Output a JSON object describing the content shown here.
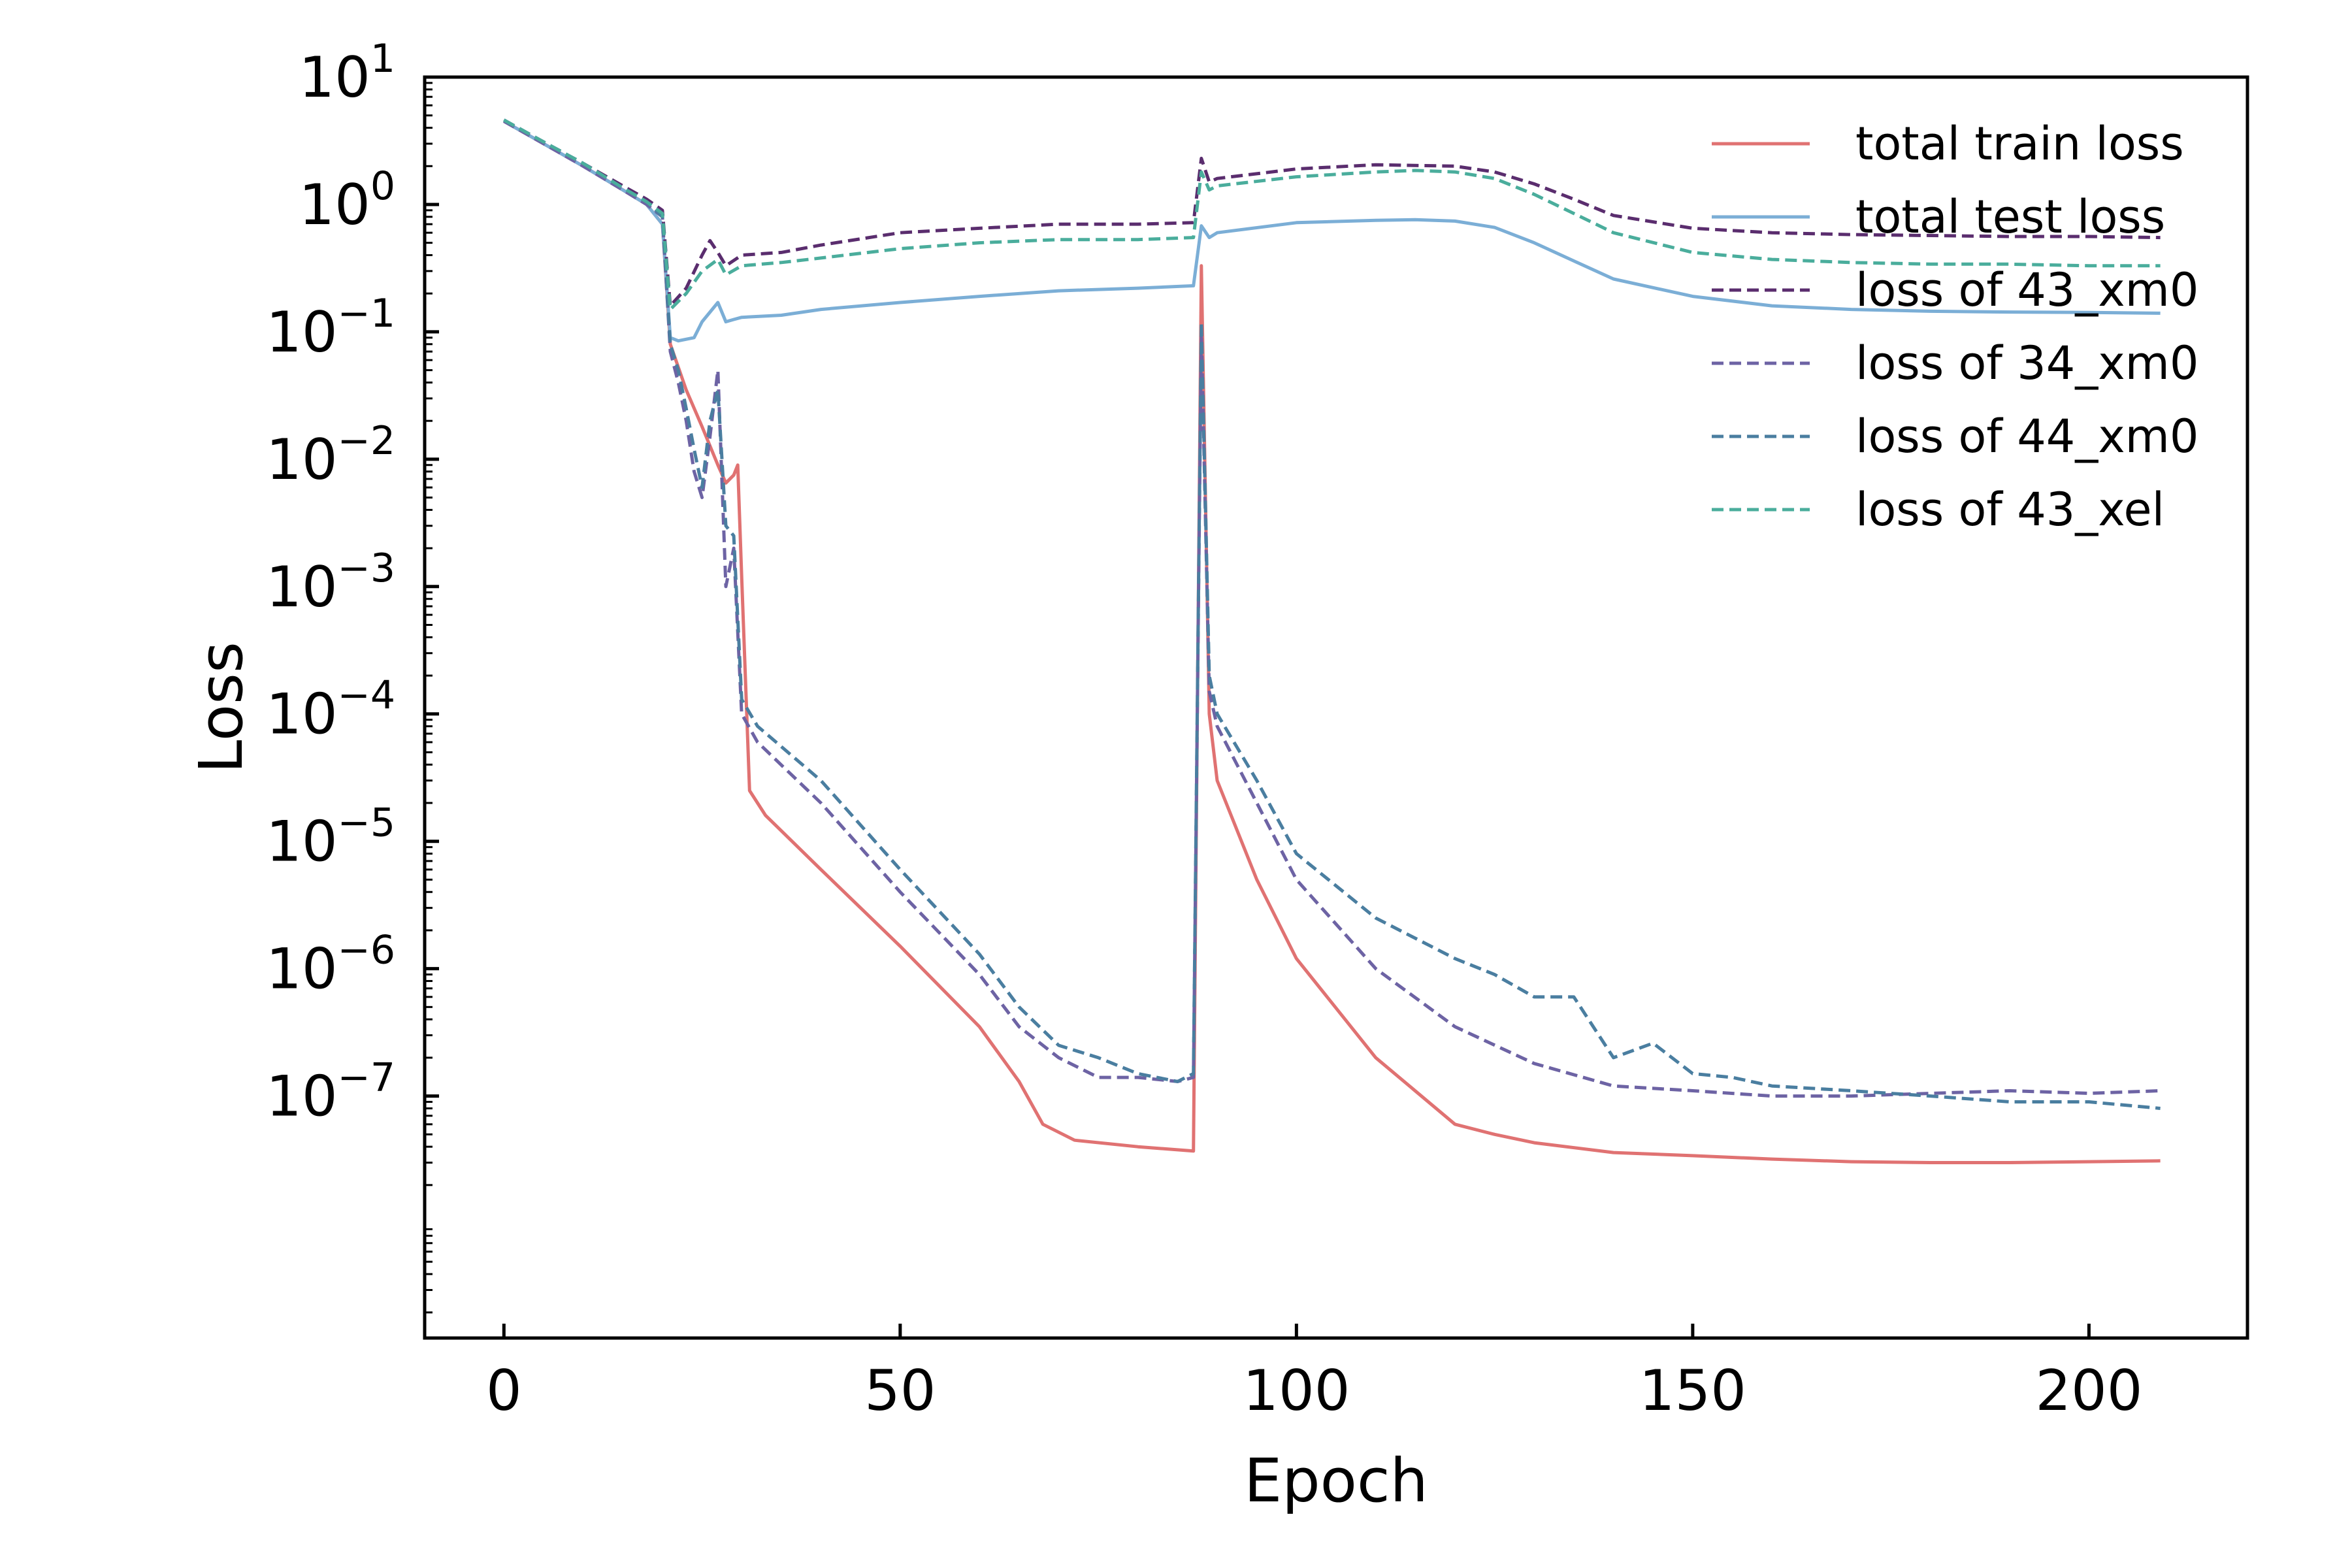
{
  "chart_data": {
    "type": "line",
    "xlabel": "Epoch",
    "ylabel": "Loss",
    "x_scale": "linear",
    "y_scale": "log",
    "xlim": [
      -10,
      220
    ],
    "ylim": [
      -8.9,
      1
    ],
    "x_ticks": [
      0,
      50,
      100,
      150,
      200
    ],
    "y_ticks": [
      {
        "exp": 1,
        "base": "10",
        "sup": "1"
      },
      {
        "exp": 0,
        "base": "10",
        "sup": "0"
      },
      {
        "exp": -1,
        "base": "10",
        "sup": "−1"
      },
      {
        "exp": -2,
        "base": "10",
        "sup": "−2"
      },
      {
        "exp": -3,
        "base": "10",
        "sup": "−3"
      },
      {
        "exp": -4,
        "base": "10",
        "sup": "−4"
      },
      {
        "exp": -5,
        "base": "10",
        "sup": "−5"
      },
      {
        "exp": -6,
        "base": "10",
        "sup": "−6"
      },
      {
        "exp": -7,
        "base": "10",
        "sup": "−7"
      }
    ],
    "grid": false,
    "legend_position": "top-right",
    "series": [
      {
        "name": "total train loss",
        "color": "#e07272",
        "dash": "solid",
        "points": [
          [
            0,
            4.5
          ],
          [
            5,
            3.0
          ],
          [
            10,
            2.0
          ],
          [
            15,
            1.3
          ],
          [
            18,
            1.0
          ],
          [
            20,
            0.7
          ],
          [
            21,
            0.08
          ],
          [
            23,
            0.035
          ],
          [
            25,
            0.018
          ],
          [
            27,
            0.009
          ],
          [
            28,
            0.0065
          ],
          [
            29,
            0.0075
          ],
          [
            29.5,
            0.009
          ],
          [
            30,
            0.0012
          ],
          [
            31,
            2.5e-05
          ],
          [
            33,
            1.6e-05
          ],
          [
            40,
            6e-06
          ],
          [
            50,
            1.5e-06
          ],
          [
            60,
            3.5e-07
          ],
          [
            65,
            1.3e-07
          ],
          [
            68,
            6e-08
          ],
          [
            72,
            4.5e-08
          ],
          [
            80,
            4e-08
          ],
          [
            87,
            3.7e-08
          ],
          [
            88,
            0.33
          ],
          [
            89,
            0.0001
          ],
          [
            90,
            3e-05
          ],
          [
            95,
            5e-06
          ],
          [
            100,
            1.2e-06
          ],
          [
            110,
            2e-07
          ],
          [
            120,
            6e-08
          ],
          [
            125,
            5e-08
          ],
          [
            130,
            4.3e-08
          ],
          [
            140,
            3.6e-08
          ],
          [
            150,
            3.4e-08
          ],
          [
            160,
            3.2e-08
          ],
          [
            170,
            3.05e-08
          ],
          [
            180,
            3e-08
          ],
          [
            190,
            3e-08
          ],
          [
            200,
            3.05e-08
          ],
          [
            209,
            3.1e-08
          ]
        ]
      },
      {
        "name": "total test loss",
        "color": "#7baed6",
        "dash": "solid",
        "points": [
          [
            0,
            4.5
          ],
          [
            5,
            3.0
          ],
          [
            10,
            2.0
          ],
          [
            15,
            1.3
          ],
          [
            18,
            1.0
          ],
          [
            20,
            0.7
          ],
          [
            21,
            0.09
          ],
          [
            22,
            0.085
          ],
          [
            24,
            0.09
          ],
          [
            25,
            0.12
          ],
          [
            27,
            0.17
          ],
          [
            28,
            0.12
          ],
          [
            29,
            0.125
          ],
          [
            30,
            0.13
          ],
          [
            35,
            0.135
          ],
          [
            40,
            0.15
          ],
          [
            50,
            0.17
          ],
          [
            60,
            0.19
          ],
          [
            70,
            0.21
          ],
          [
            80,
            0.22
          ],
          [
            87,
            0.23
          ],
          [
            88,
            0.68
          ],
          [
            89,
            0.55
          ],
          [
            90,
            0.6
          ],
          [
            100,
            0.72
          ],
          [
            110,
            0.75
          ],
          [
            115,
            0.76
          ],
          [
            120,
            0.74
          ],
          [
            125,
            0.66
          ],
          [
            130,
            0.5
          ],
          [
            135,
            0.36
          ],
          [
            140,
            0.26
          ],
          [
            150,
            0.19
          ],
          [
            160,
            0.16
          ],
          [
            170,
            0.15
          ],
          [
            180,
            0.145
          ],
          [
            190,
            0.143
          ],
          [
            200,
            0.142
          ],
          [
            209,
            0.14
          ]
        ]
      },
      {
        "name": "loss of 43_xm0",
        "color": "#5a2d6e",
        "dash": "dashed",
        "points": [
          [
            0,
            4.6
          ],
          [
            5,
            3.1
          ],
          [
            10,
            2.1
          ],
          [
            15,
            1.4
          ],
          [
            18,
            1.1
          ],
          [
            20,
            0.9
          ],
          [
            21,
            0.16
          ],
          [
            23,
            0.22
          ],
          [
            25,
            0.4
          ],
          [
            26,
            0.52
          ],
          [
            27,
            0.42
          ],
          [
            28,
            0.33
          ],
          [
            30,
            0.4
          ],
          [
            35,
            0.42
          ],
          [
            40,
            0.48
          ],
          [
            50,
            0.6
          ],
          [
            60,
            0.65
          ],
          [
            70,
            0.7
          ],
          [
            80,
            0.7
          ],
          [
            87,
            0.72
          ],
          [
            88,
            2.3
          ],
          [
            89,
            1.5
          ],
          [
            90,
            1.6
          ],
          [
            100,
            1.9
          ],
          [
            110,
            2.05
          ],
          [
            120,
            2.0
          ],
          [
            125,
            1.8
          ],
          [
            130,
            1.45
          ],
          [
            135,
            1.1
          ],
          [
            140,
            0.82
          ],
          [
            150,
            0.65
          ],
          [
            160,
            0.6
          ],
          [
            170,
            0.58
          ],
          [
            180,
            0.57
          ],
          [
            190,
            0.56
          ],
          [
            200,
            0.56
          ],
          [
            209,
            0.55
          ]
        ]
      },
      {
        "name": "loss of 34_xm0",
        "color": "#6d63a4",
        "dash": "dashed",
        "points": [
          [
            0,
            4.5
          ],
          [
            5,
            3.0
          ],
          [
            10,
            2.0
          ],
          [
            15,
            1.3
          ],
          [
            18,
            1.0
          ],
          [
            20,
            0.8
          ],
          [
            21,
            0.07
          ],
          [
            22,
            0.04
          ],
          [
            23,
            0.02
          ],
          [
            24,
            0.008
          ],
          [
            25,
            0.005
          ],
          [
            26,
            0.015
          ],
          [
            27,
            0.05
          ],
          [
            28,
            0.001
          ],
          [
            29,
            0.002
          ],
          [
            30,
            0.0001
          ],
          [
            32,
            6e-05
          ],
          [
            40,
            2e-05
          ],
          [
            50,
            4e-06
          ],
          [
            60,
            9e-07
          ],
          [
            65,
            3.5e-07
          ],
          [
            70,
            2e-07
          ],
          [
            75,
            1.4e-07
          ],
          [
            80,
            1.4e-07
          ],
          [
            85,
            1.3e-07
          ],
          [
            87,
            1.4e-07
          ],
          [
            88,
            0.1
          ],
          [
            89,
            0.00015
          ],
          [
            90,
            8e-05
          ],
          [
            95,
            2e-05
          ],
          [
            100,
            5e-06
          ],
          [
            110,
            1e-06
          ],
          [
            120,
            3.5e-07
          ],
          [
            130,
            1.8e-07
          ],
          [
            140,
            1.2e-07
          ],
          [
            150,
            1.1e-07
          ],
          [
            160,
            1e-07
          ],
          [
            170,
            1e-07
          ],
          [
            180,
            1.05e-07
          ],
          [
            190,
            1.1e-07
          ],
          [
            200,
            1.05e-07
          ],
          [
            209,
            1.1e-07
          ]
        ]
      },
      {
        "name": "loss of 44_xm0",
        "color": "#4a7ea0",
        "dash": "dashed",
        "points": [
          [
            0,
            4.6
          ],
          [
            5,
            3.1
          ],
          [
            10,
            2.1
          ],
          [
            15,
            1.35
          ],
          [
            18,
            1.05
          ],
          [
            20,
            0.8
          ],
          [
            21,
            0.08
          ],
          [
            22,
            0.05
          ],
          [
            23,
            0.025
          ],
          [
            24,
            0.012
          ],
          [
            25,
            0.006
          ],
          [
            26,
            0.02
          ],
          [
            27,
            0.035
          ],
          [
            28,
            0.003
          ],
          [
            29,
            0.0025
          ],
          [
            30,
            0.00013
          ],
          [
            32,
            8e-05
          ],
          [
            40,
            3e-05
          ],
          [
            50,
            6e-06
          ],
          [
            60,
            1.3e-06
          ],
          [
            65,
            5e-07
          ],
          [
            70,
            2.5e-07
          ],
          [
            75,
            2e-07
          ],
          [
            80,
            1.5e-07
          ],
          [
            85,
            1.3e-07
          ],
          [
            87,
            1.5e-07
          ],
          [
            88,
            0.12
          ],
          [
            89,
            0.0002
          ],
          [
            90,
            0.0001
          ],
          [
            95,
            3e-05
          ],
          [
            100,
            8e-06
          ],
          [
            110,
            2.5e-06
          ],
          [
            120,
            1.2e-06
          ],
          [
            125,
            9e-07
          ],
          [
            130,
            6e-07
          ],
          [
            135,
            6e-07
          ],
          [
            140,
            2e-07
          ],
          [
            145,
            2.6e-07
          ],
          [
            150,
            1.5e-07
          ],
          [
            155,
            1.4e-07
          ],
          [
            160,
            1.2e-07
          ],
          [
            170,
            1.1e-07
          ],
          [
            180,
            1e-07
          ],
          [
            190,
            9e-08
          ],
          [
            200,
            9e-08
          ],
          [
            209,
            8e-08
          ]
        ]
      },
      {
        "name": "loss of 43_xel",
        "color": "#4aad9c",
        "dash": "dashed",
        "points": [
          [
            0,
            4.6
          ],
          [
            5,
            3.1
          ],
          [
            10,
            2.1
          ],
          [
            15,
            1.35
          ],
          [
            18,
            1.05
          ],
          [
            20,
            0.85
          ],
          [
            21,
            0.15
          ],
          [
            23,
            0.2
          ],
          [
            25,
            0.3
          ],
          [
            27,
            0.37
          ],
          [
            28,
            0.28
          ],
          [
            30,
            0.33
          ],
          [
            35,
            0.35
          ],
          [
            40,
            0.38
          ],
          [
            50,
            0.45
          ],
          [
            60,
            0.5
          ],
          [
            70,
            0.53
          ],
          [
            80,
            0.53
          ],
          [
            87,
            0.55
          ],
          [
            88,
            1.8
          ],
          [
            89,
            1.3
          ],
          [
            90,
            1.4
          ],
          [
            100,
            1.65
          ],
          [
            110,
            1.8
          ],
          [
            115,
            1.85
          ],
          [
            120,
            1.8
          ],
          [
            125,
            1.6
          ],
          [
            130,
            1.2
          ],
          [
            135,
            0.85
          ],
          [
            140,
            0.6
          ],
          [
            150,
            0.42
          ],
          [
            160,
            0.37
          ],
          [
            170,
            0.35
          ],
          [
            180,
            0.34
          ],
          [
            190,
            0.34
          ],
          [
            200,
            0.33
          ],
          [
            209,
            0.33
          ]
        ]
      }
    ]
  }
}
